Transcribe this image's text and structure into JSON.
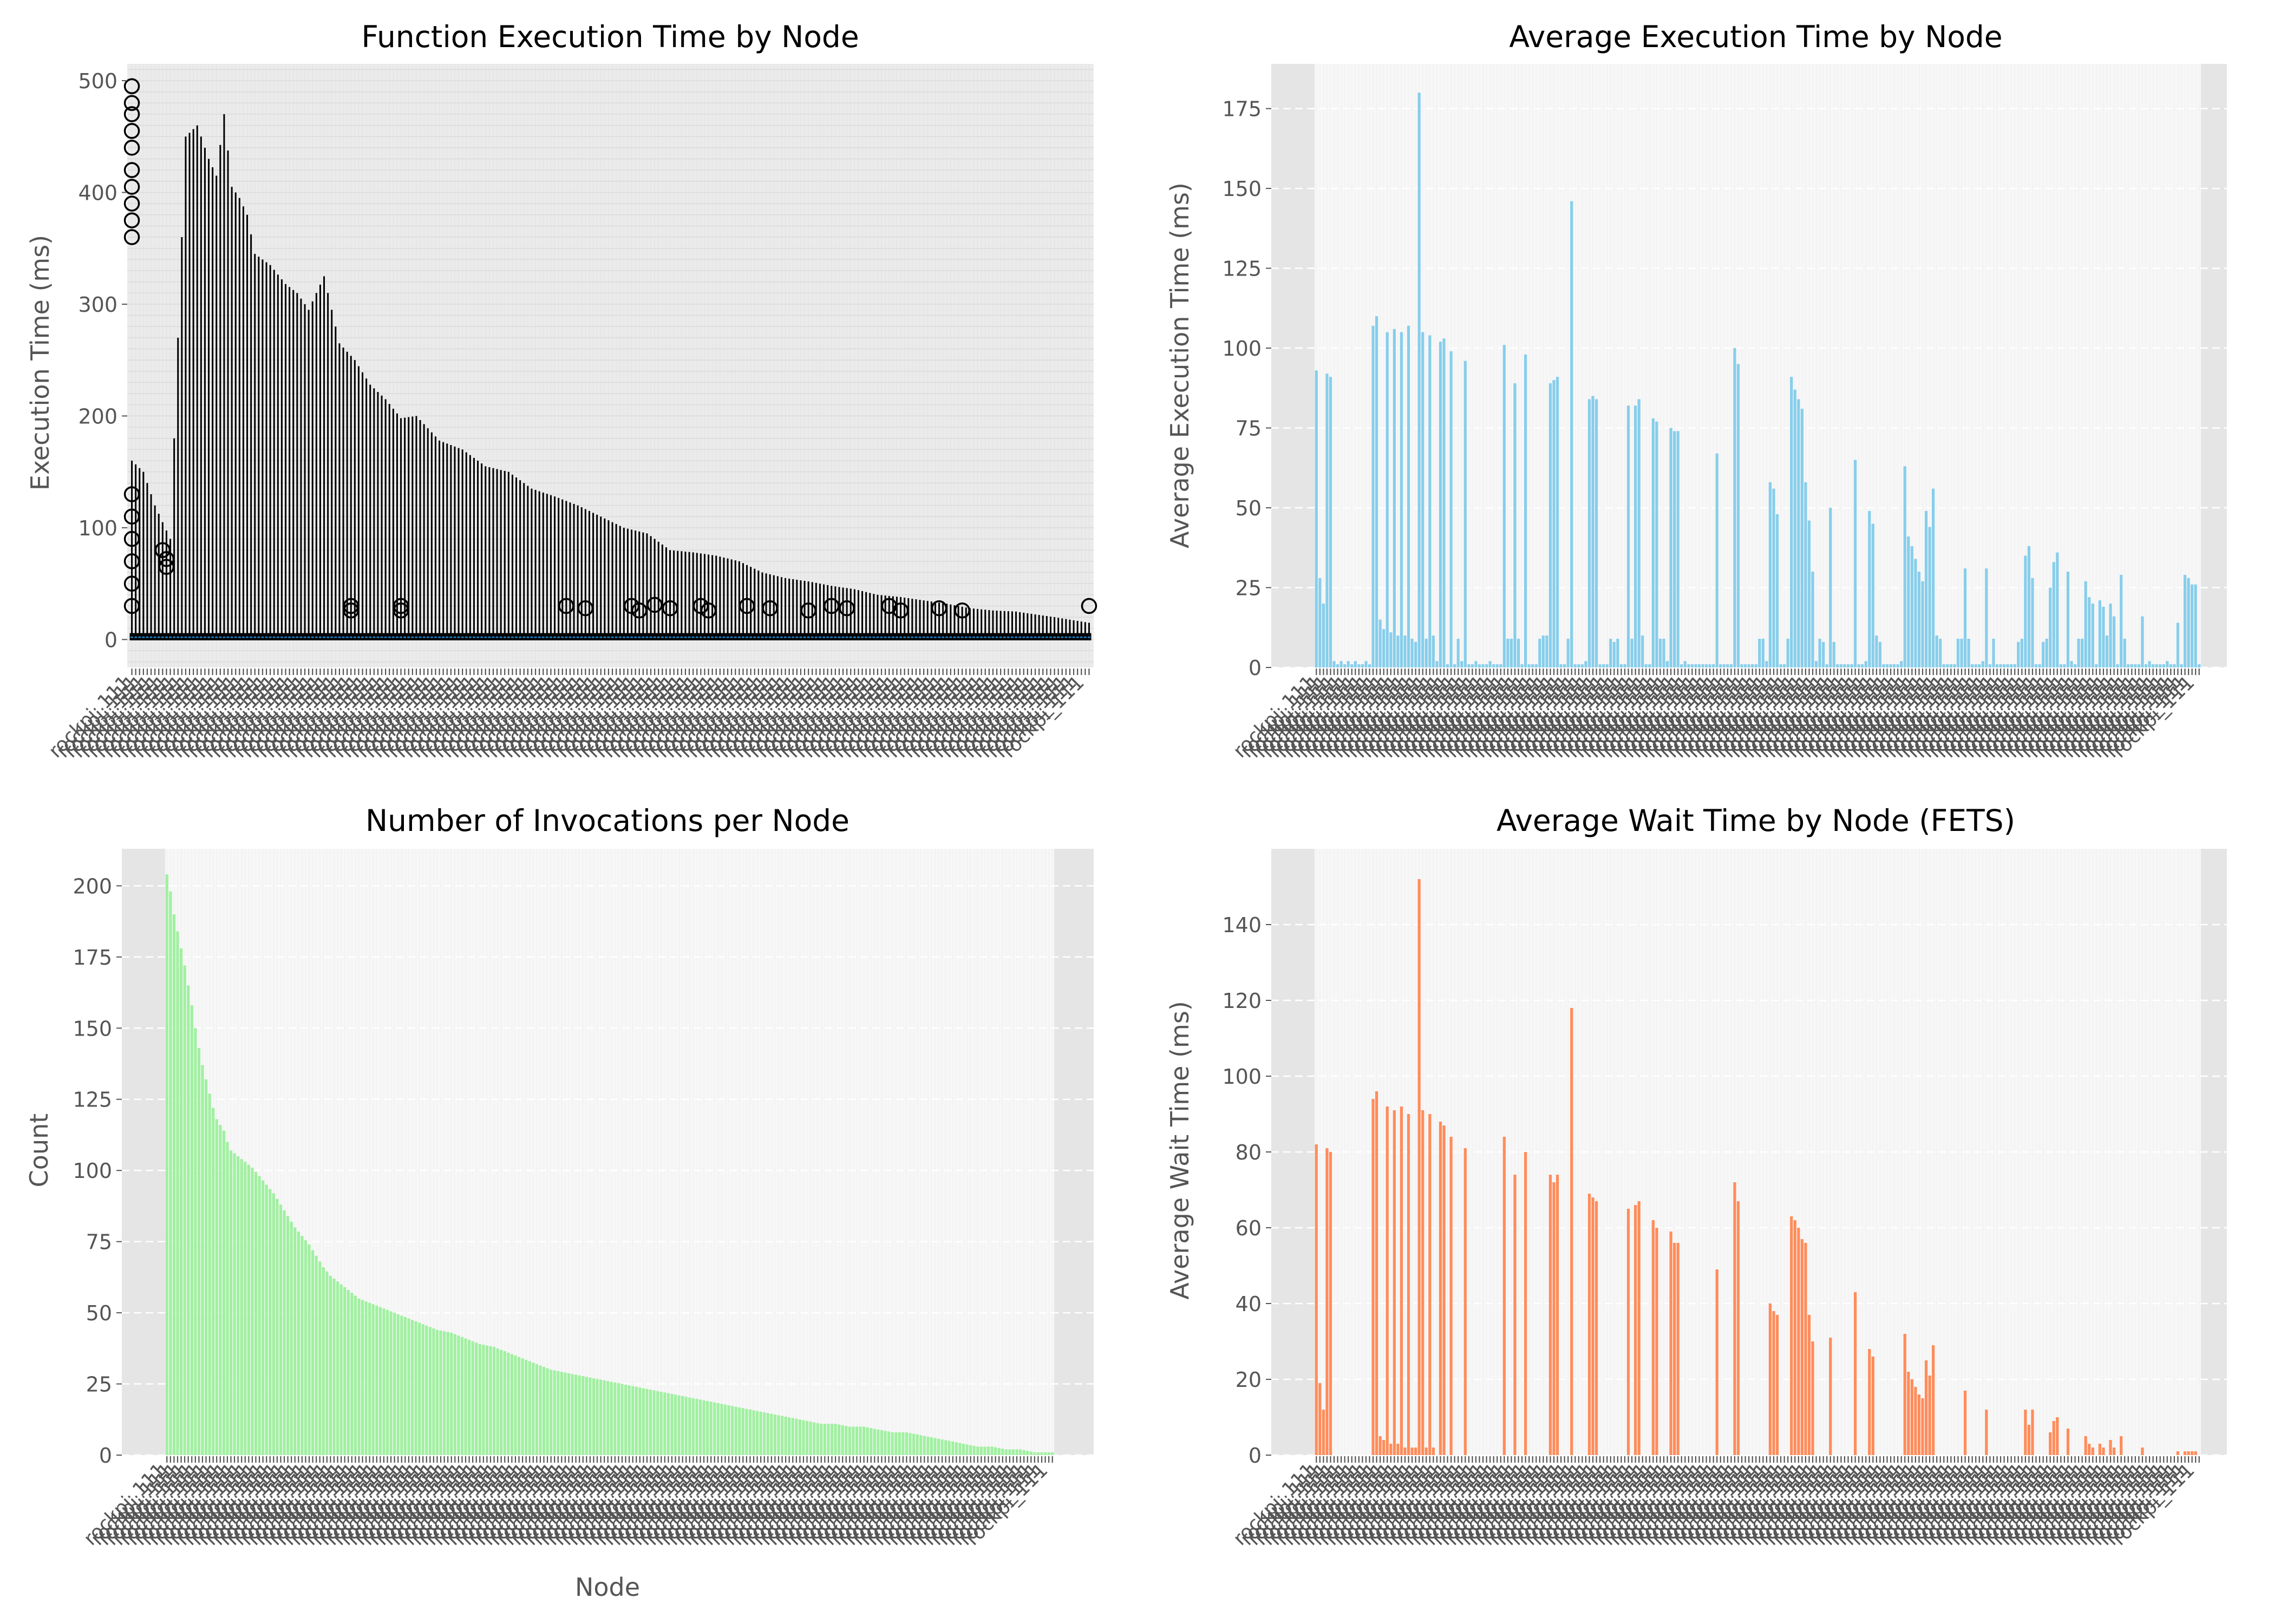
{
  "chart_data": [
    {
      "type": "box",
      "title": "Function Execution Time by Node",
      "xlabel": "",
      "ylabel": "Execution Time (ms)",
      "ylim": [
        -25,
        515
      ],
      "yticks": [
        0,
        100,
        200,
        300,
        400,
        500
      ],
      "grid": true,
      "background": "#ebebeb",
      "median_color": "#1f77b4",
      "category_count": 250,
      "category_labels_note": "dense overlapping rotated node labels; last legible label is 'rockpi_111'",
      "last_category_label": "rockpi_111",
      "whisker_max_profile": [
        [
          0,
          160
        ],
        [
          3,
          150
        ],
        [
          6,
          120
        ],
        [
          10,
          90
        ],
        [
          14,
          450
        ],
        [
          17,
          460
        ],
        [
          20,
          430
        ],
        [
          22,
          415
        ],
        [
          24,
          470
        ],
        [
          26,
          405
        ],
        [
          28,
          395
        ],
        [
          30,
          380
        ],
        [
          32,
          345
        ],
        [
          36,
          335
        ],
        [
          40,
          318
        ],
        [
          43,
          310
        ],
        [
          46,
          295
        ],
        [
          50,
          325
        ],
        [
          54,
          265
        ],
        [
          58,
          250
        ],
        [
          62,
          228
        ],
        [
          66,
          215
        ],
        [
          70,
          198
        ],
        [
          74,
          200
        ],
        [
          80,
          178
        ],
        [
          86,
          170
        ],
        [
          92,
          155
        ],
        [
          98,
          150
        ],
        [
          104,
          135
        ],
        [
          110,
          128
        ],
        [
          116,
          120
        ],
        [
          122,
          110
        ],
        [
          128,
          100
        ],
        [
          134,
          95
        ],
        [
          140,
          80
        ],
        [
          146,
          78
        ],
        [
          152,
          75
        ],
        [
          158,
          70
        ],
        [
          164,
          60
        ],
        [
          170,
          55
        ],
        [
          176,
          52
        ],
        [
          182,
          48
        ],
        [
          188,
          45
        ],
        [
          194,
          40
        ],
        [
          200,
          38
        ],
        [
          206,
          35
        ],
        [
          212,
          32
        ],
        [
          218,
          28
        ],
        [
          224,
          26
        ],
        [
          230,
          25
        ],
        [
          240,
          20
        ],
        [
          249,
          15
        ]
      ],
      "outliers": [
        [
          0,
          495
        ],
        [
          0,
          480
        ],
        [
          0,
          470
        ],
        [
          0,
          455
        ],
        [
          0,
          440
        ],
        [
          0,
          420
        ],
        [
          0,
          405
        ],
        [
          0,
          390
        ],
        [
          0,
          375
        ],
        [
          0,
          360
        ],
        [
          0,
          130
        ],
        [
          0,
          110
        ],
        [
          0,
          90
        ],
        [
          0,
          70
        ],
        [
          0,
          50
        ],
        [
          0,
          30
        ],
        [
          8,
          80
        ],
        [
          9,
          72
        ],
        [
          9,
          65
        ],
        [
          57,
          30
        ],
        [
          57,
          26
        ],
        [
          70,
          30
        ],
        [
          70,
          26
        ],
        [
          113,
          30
        ],
        [
          118,
          28
        ],
        [
          130,
          30
        ],
        [
          132,
          26
        ],
        [
          136,
          31
        ],
        [
          140,
          28
        ],
        [
          148,
          30
        ],
        [
          150,
          26
        ],
        [
          160,
          30
        ],
        [
          166,
          28
        ],
        [
          176,
          26
        ],
        [
          182,
          30
        ],
        [
          186,
          28
        ],
        [
          197,
          30
        ],
        [
          200,
          26
        ],
        [
          210,
          28
        ],
        [
          216,
          26
        ],
        [
          249,
          30
        ]
      ]
    },
    {
      "type": "bar",
      "title": "Average Execution Time by Node",
      "xlabel": "",
      "ylabel": "Average Execution Time (ms)",
      "ylim": [
        0,
        189
      ],
      "yticks": [
        0,
        25,
        50,
        75,
        100,
        125,
        150,
        175
      ],
      "color": "#87ceeb",
      "category_count": 250,
      "last_category_label": "rockpi_111",
      "values": [
        93,
        28,
        20,
        92,
        91,
        2,
        1,
        2,
        1,
        2,
        1,
        2,
        1,
        1,
        2,
        1,
        107,
        110,
        15,
        12,
        105,
        11,
        106,
        10,
        105,
        10,
        107,
        9,
        8,
        180,
        105,
        9,
        104,
        10,
        2,
        102,
        103,
        1,
        99,
        1,
        9,
        2,
        96,
        1,
        1,
        2,
        1,
        1,
        1,
        2,
        1,
        1,
        1,
        101,
        9,
        9,
        89,
        9,
        1,
        98,
        1,
        1,
        1,
        9,
        10,
        10,
        89,
        90,
        91,
        1,
        1,
        9,
        146,
        1,
        1,
        1,
        2,
        84,
        85,
        84,
        1,
        1,
        1,
        9,
        8,
        9,
        1,
        1,
        82,
        9,
        82,
        84,
        10,
        1,
        1,
        78,
        77,
        9,
        9,
        2,
        75,
        74,
        74,
        1,
        2,
        1,
        1,
        1,
        1,
        1,
        1,
        1,
        1,
        67,
        1,
        1,
        1,
        1,
        100,
        95,
        1,
        1,
        1,
        1,
        1,
        9,
        9,
        2,
        58,
        56,
        48,
        1,
        1,
        9,
        91,
        87,
        84,
        81,
        58,
        46,
        30,
        2,
        9,
        8,
        1,
        50,
        8,
        1,
        1,
        1,
        1,
        1,
        65,
        1,
        1,
        2,
        49,
        45,
        10,
        8,
        1,
        1,
        1,
        1,
        1,
        2,
        63,
        41,
        38,
        34,
        30,
        27,
        49,
        44,
        56,
        10,
        9,
        1,
        1,
        1,
        1,
        9,
        9,
        31,
        9,
        1,
        1,
        1,
        2,
        31,
        1,
        9,
        1,
        1,
        1,
        1,
        1,
        1,
        8,
        9,
        35,
        38,
        28,
        1,
        1,
        8,
        9,
        25,
        33,
        36,
        1,
        1,
        30,
        2,
        1,
        9,
        9,
        27,
        22,
        20,
        1,
        21,
        19,
        10,
        20,
        16,
        1,
        29,
        9,
        1,
        1,
        1,
        1,
        16,
        1,
        2,
        1,
        1,
        1,
        1,
        2,
        1,
        1,
        14,
        1,
        29,
        28,
        26,
        26,
        1
      ]
    },
    {
      "type": "bar",
      "title": "Number of Invocations per Node",
      "xlabel": "Node",
      "ylabel": "Count",
      "ylim": [
        0,
        213
      ],
      "yticks": [
        0,
        25,
        50,
        75,
        100,
        125,
        150,
        175,
        200
      ],
      "color": "#90ee90",
      "category_count": 250,
      "last_category_label": "rockpi_111",
      "values_descending_profile": [
        [
          0,
          204
        ],
        [
          1,
          198
        ],
        [
          2,
          190
        ],
        [
          3,
          184
        ],
        [
          4,
          178
        ],
        [
          5,
          172
        ],
        [
          6,
          165
        ],
        [
          7,
          158
        ],
        [
          8,
          150
        ],
        [
          9,
          143
        ],
        [
          10,
          137
        ],
        [
          11,
          132
        ],
        [
          12,
          127
        ],
        [
          13,
          122
        ],
        [
          14,
          118
        ],
        [
          15,
          116
        ],
        [
          16,
          114
        ],
        [
          17,
          110
        ],
        [
          18,
          107
        ],
        [
          20,
          105
        ],
        [
          22,
          103
        ],
        [
          24,
          101
        ],
        [
          26,
          98
        ],
        [
          28,
          95
        ],
        [
          30,
          92
        ],
        [
          32,
          88
        ],
        [
          34,
          84
        ],
        [
          36,
          80
        ],
        [
          38,
          77
        ],
        [
          40,
          74
        ],
        [
          42,
          70
        ],
        [
          44,
          66
        ],
        [
          46,
          63
        ],
        [
          48,
          61
        ],
        [
          50,
          59
        ],
        [
          52,
          57
        ],
        [
          54,
          55
        ],
        [
          56,
          54
        ],
        [
          58,
          53
        ],
        [
          60,
          52
        ],
        [
          64,
          50
        ],
        [
          68,
          48
        ],
        [
          72,
          46
        ],
        [
          76,
          44
        ],
        [
          80,
          43
        ],
        [
          84,
          41
        ],
        [
          88,
          39
        ],
        [
          92,
          38
        ],
        [
          96,
          36
        ],
        [
          100,
          34
        ],
        [
          104,
          32
        ],
        [
          108,
          30
        ],
        [
          112,
          29
        ],
        [
          116,
          28
        ],
        [
          120,
          27
        ],
        [
          124,
          26
        ],
        [
          128,
          25
        ],
        [
          132,
          24
        ],
        [
          136,
          23
        ],
        [
          140,
          22
        ],
        [
          144,
          21
        ],
        [
          148,
          20
        ],
        [
          152,
          19
        ],
        [
          156,
          18
        ],
        [
          160,
          17
        ],
        [
          164,
          16
        ],
        [
          168,
          15
        ],
        [
          172,
          14
        ],
        [
          176,
          13
        ],
        [
          180,
          12
        ],
        [
          184,
          11
        ],
        [
          188,
          11
        ],
        [
          192,
          10
        ],
        [
          196,
          10
        ],
        [
          200,
          9
        ],
        [
          204,
          8
        ],
        [
          208,
          8
        ],
        [
          212,
          7
        ],
        [
          216,
          6
        ],
        [
          220,
          5
        ],
        [
          224,
          4
        ],
        [
          228,
          3
        ],
        [
          232,
          3
        ],
        [
          236,
          2
        ],
        [
          240,
          2
        ],
        [
          244,
          1
        ],
        [
          249,
          1
        ]
      ]
    },
    {
      "type": "bar",
      "title": "Average Wait Time by Node (FETS)",
      "xlabel": "",
      "ylabel": "Average Wait Time (ms)",
      "ylim": [
        0,
        160
      ],
      "yticks": [
        0,
        20,
        40,
        60,
        80,
        100,
        120,
        140
      ],
      "color": "#ff8c5a",
      "category_count": 250,
      "last_category_label": "rockpi_111",
      "values": [
        82,
        19,
        12,
        81,
        80,
        0,
        0,
        0,
        0,
        0,
        0,
        0,
        0,
        0,
        0,
        0,
        94,
        96,
        5,
        4,
        92,
        3,
        91,
        3,
        92,
        2,
        90,
        2,
        2,
        152,
        91,
        2,
        90,
        2,
        0,
        88,
        87,
        0,
        84,
        0,
        0,
        0,
        81,
        0,
        0,
        0,
        0,
        0,
        0,
        0,
        0,
        0,
        0,
        84,
        0,
        0,
        74,
        0,
        0,
        80,
        0,
        0,
        0,
        0,
        0,
        0,
        74,
        72,
        74,
        0,
        0,
        0,
        118,
        0,
        0,
        0,
        0,
        69,
        68,
        67,
        0,
        0,
        0,
        0,
        0,
        0,
        0,
        0,
        65,
        0,
        66,
        67,
        0,
        0,
        0,
        62,
        60,
        0,
        0,
        0,
        59,
        56,
        56,
        0,
        0,
        0,
        0,
        0,
        0,
        0,
        0,
        0,
        0,
        49,
        0,
        0,
        0,
        0,
        72,
        67,
        0,
        0,
        0,
        0,
        0,
        0,
        0,
        0,
        40,
        38,
        37,
        0,
        0,
        0,
        63,
        62,
        60,
        57,
        56,
        37,
        30,
        0,
        0,
        0,
        0,
        31,
        0,
        0,
        0,
        0,
        0,
        0,
        43,
        0,
        0,
        0,
        28,
        26,
        0,
        0,
        0,
        0,
        0,
        0,
        0,
        0,
        32,
        22,
        20,
        18,
        16,
        15,
        25,
        21,
        29,
        0,
        0,
        0,
        0,
        0,
        0,
        0,
        0,
        17,
        0,
        0,
        0,
        0,
        0,
        12,
        0,
        0,
        0,
        0,
        0,
        0,
        0,
        0,
        0,
        0,
        12,
        8,
        12,
        0,
        0,
        0,
        0,
        6,
        9,
        10,
        0,
        0,
        7,
        0,
        0,
        0,
        0,
        5,
        3,
        2,
        0,
        3,
        2,
        0,
        4,
        2,
        0,
        5,
        0,
        0,
        0,
        0,
        0,
        2,
        0,
        0,
        0,
        0,
        0,
        0,
        0,
        0,
        0,
        1,
        0,
        1,
        1,
        1,
        1,
        0
      ]
    }
  ]
}
